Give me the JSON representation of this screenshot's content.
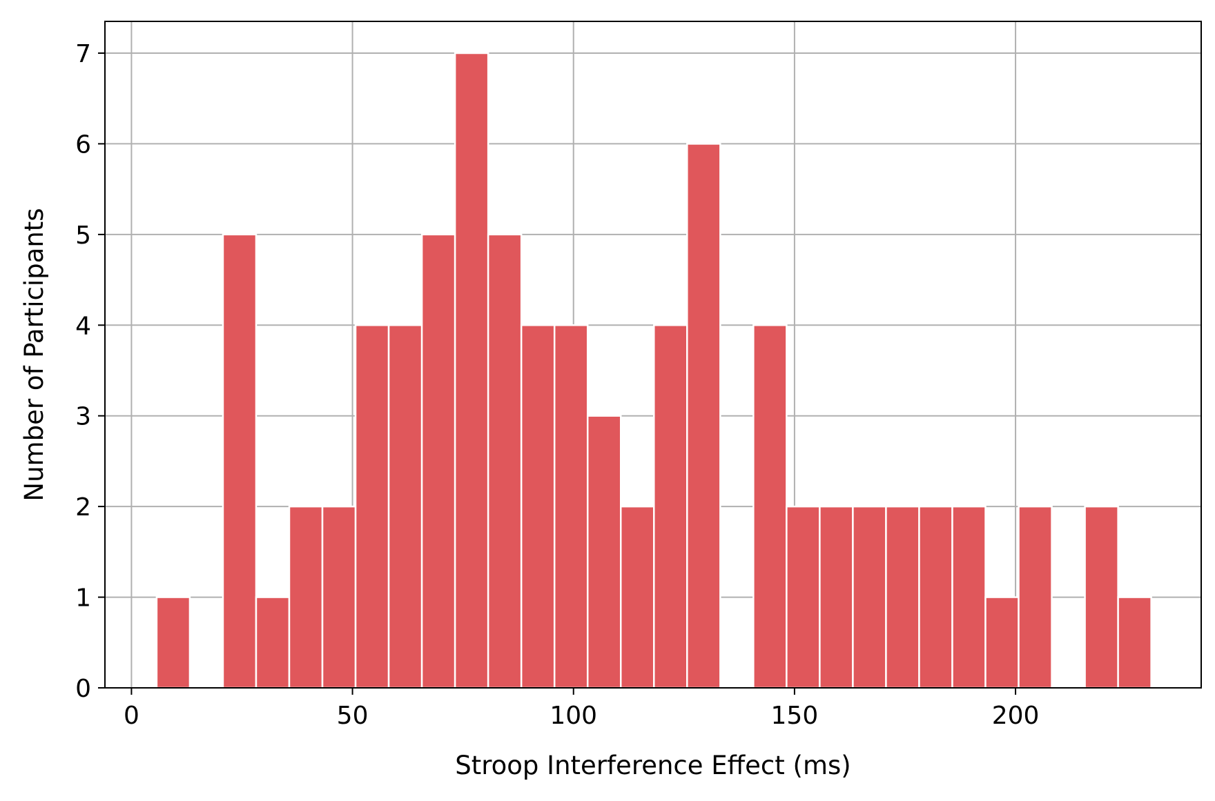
{
  "chart_data": {
    "type": "bar",
    "subtype": "histogram",
    "xlabel": "Stroop Interference Effect (ms)",
    "ylabel": "Number of Participants",
    "xlim": [
      -6,
      242
    ],
    "ylim": [
      0,
      7.35
    ],
    "xticks": [
      0,
      50,
      100,
      150,
      200
    ],
    "yticks": [
      0,
      1,
      2,
      3,
      4,
      5,
      6,
      7
    ],
    "grid": true,
    "bar_color": "#e0575b",
    "bin_edges": [
      5.7,
      13.2,
      20.7,
      28.2,
      35.7,
      43.2,
      50.7,
      58.2,
      65.7,
      73.2,
      80.7,
      88.2,
      95.7,
      103.2,
      110.7,
      118.2,
      125.7,
      133.2,
      140.7,
      148.2,
      155.7,
      163.2,
      170.7,
      178.2,
      185.7,
      193.2,
      200.7,
      208.2,
      215.7,
      223.2,
      230.7
    ],
    "counts": [
      1,
      0,
      5,
      1,
      2,
      2,
      4,
      4,
      5,
      7,
      5,
      4,
      4,
      3,
      2,
      4,
      6,
      0,
      4,
      2,
      2,
      2,
      2,
      2,
      2,
      1,
      2,
      0,
      2,
      1
    ]
  }
}
